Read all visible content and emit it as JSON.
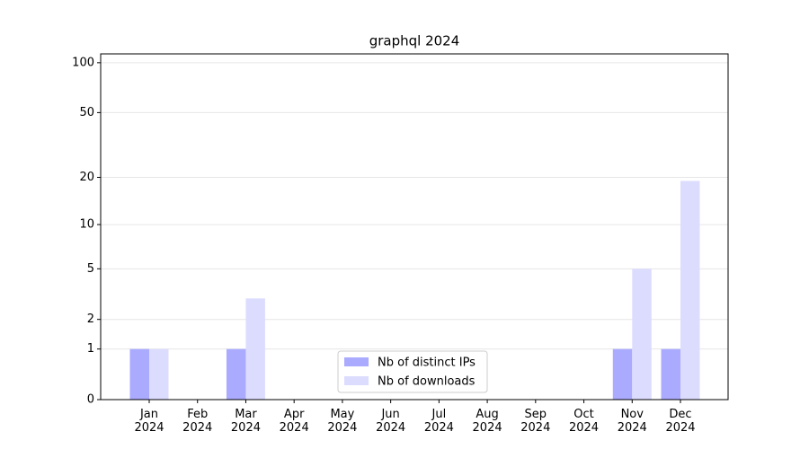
{
  "chart_data": {
    "type": "bar",
    "title": "graphql 2024",
    "categories": [
      "Jan\n2024",
      "Feb\n2024",
      "Mar\n2024",
      "Apr\n2024",
      "May\n2024",
      "Jun\n2024",
      "Jul\n2024",
      "Aug\n2024",
      "Sep\n2024",
      "Oct\n2024",
      "Nov\n2024",
      "Dec\n2024"
    ],
    "series": [
      {
        "name": "Nb of distinct IPs",
        "color": "#aaaaff",
        "values": [
          1,
          0,
          1,
          0,
          0,
          0,
          0,
          0,
          0,
          0,
          1,
          1
        ]
      },
      {
        "name": "Nb of downloads",
        "color": "#dcdcff",
        "values": [
          1,
          0,
          3,
          0,
          0,
          0,
          0,
          0,
          0,
          0,
          5,
          19
        ]
      }
    ],
    "yscale": "log1p",
    "ylim": [
      0,
      113
    ],
    "yticks": [
      0,
      1,
      2,
      5,
      10,
      20,
      50,
      100
    ],
    "grid": true,
    "legend": "lower center"
  }
}
